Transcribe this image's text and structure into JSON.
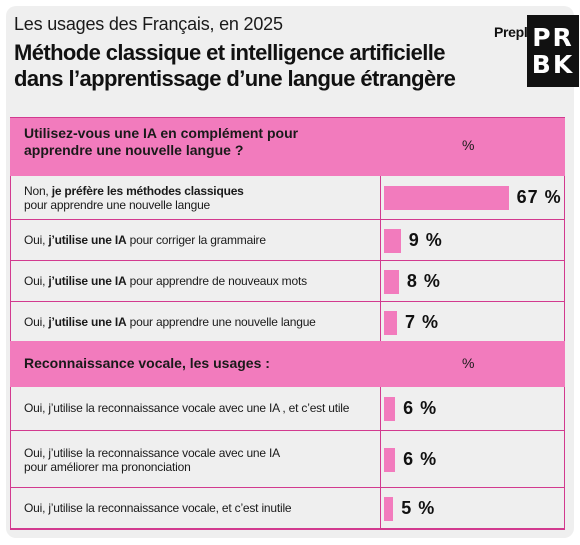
{
  "header": {
    "subtitle": "Les usages des Français, en 2025",
    "title": "Méthode classique et intelligence artificielle dans l’apprentissage d’une langue étrangère",
    "brand": "Prepl",
    "logo_line1": "PR",
    "logo_line2": "BK"
  },
  "colors": {
    "accent": "#f27bbd",
    "rule": "#d23a8f",
    "background": "#efefef"
  },
  "chart_data": [
    {
      "type": "bar",
      "title": "Utilisez-vous une IA en complément pour apprendre une nouvelle langue ?",
      "value_header": "%",
      "unit": "%",
      "rows": [
        {
          "prefix": "Non, ",
          "bold": "je préfère les méthodes classiques",
          "rest": "",
          "line2": "pour apprendre une nouvelle langue",
          "value": 67,
          "value_label": "67 %"
        },
        {
          "prefix": "Oui, ",
          "bold": "j’utilise une IA",
          "rest": " pour corriger la grammaire",
          "line2": "",
          "value": 9,
          "value_label": "9 %"
        },
        {
          "prefix": "Oui, ",
          "bold": "j’utilise une IA",
          "rest": " pour apprendre de nouveaux mots",
          "line2": "",
          "value": 8,
          "value_label": "8 %"
        },
        {
          "prefix": "Oui, ",
          "bold": "j’utilise une IA",
          "rest": " pour apprendre  une nouvelle langue",
          "line2": "",
          "value": 7,
          "value_label": "7 %"
        }
      ]
    },
    {
      "type": "bar",
      "title": "Reconnaissance vocale, les usages :",
      "value_header": "%",
      "unit": "%",
      "rows": [
        {
          "prefix": "Oui, j’utilise la reconnaissance vocale avec une IA , et c’est utile",
          "bold": "",
          "rest": "",
          "line2": "",
          "value": 6,
          "value_label": "6 %"
        },
        {
          "prefix": "Oui, j’utilise la reconnaissance vocale avec une IA",
          "bold": "",
          "rest": "",
          "line2": "pour améliorer ma prononciation",
          "value": 6,
          "value_label": "6 %"
        },
        {
          "prefix": "Oui, j’utilise la reconnaissance vocale, et c’est inutile",
          "bold": "",
          "rest": "",
          "line2": "",
          "value": 5,
          "value_label": "5 %"
        }
      ]
    }
  ]
}
